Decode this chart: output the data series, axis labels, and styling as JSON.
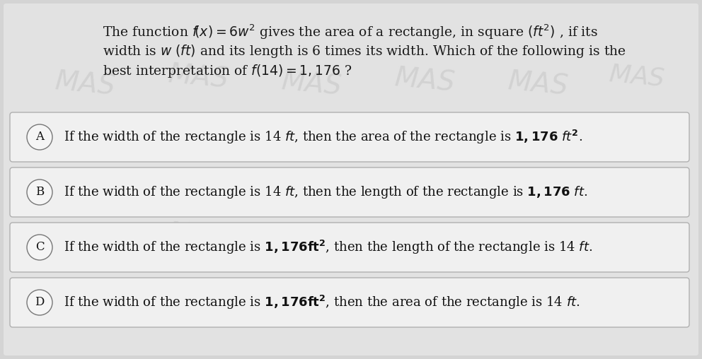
{
  "bg_color": "#d4d4d4",
  "page_bg": "#e8e8e8",
  "q_text_color": "#1a1a1a",
  "option_box_color": "#f0f0f0",
  "option_box_edge_color": "#b0b0b0",
  "label_circle_color": "#f5f5f5",
  "label_circle_edge": "#777777",
  "text_color": "#111111",
  "question_lines": [
    "The function $\\mathit{f}\\!(x) = 6w^2$ gives the area of a rectangle, in square $(ft^2)$ , if its",
    "width is $w$ $(ft)$ and its length is 6 times its width. Which of the following is the",
    "best interpretation of $f(14) = 1,176$ ?"
  ],
  "options": [
    {
      "label": "A",
      "text": "If the width of the rectangle is 14 $ft$, then the area of the rectangle is $\\mathbf{1,176}$ $\\mathbf{\\mathit{ft}^2}$."
    },
    {
      "label": "B",
      "text": "If the width of the rectangle is 14 $ft$, then the length of the rectangle is $\\mathbf{1,176}$ $\\mathbf{\\mathit{ft}}$."
    },
    {
      "label": "C",
      "text": "If the width of the rectangle is $\\mathbf{1,176}$$\\mathbf{ft^2}$, then the length of the rectangle is 14 $ft$."
    },
    {
      "label": "D",
      "text": "If the width of the rectangle is $\\mathbf{1,176}$$\\mathbf{ft^2}$, then the area of the rectangle is 14 $ft$."
    }
  ],
  "title_fontsize": 13.5,
  "option_fontsize": 13.0,
  "label_fontsize": 12.0
}
